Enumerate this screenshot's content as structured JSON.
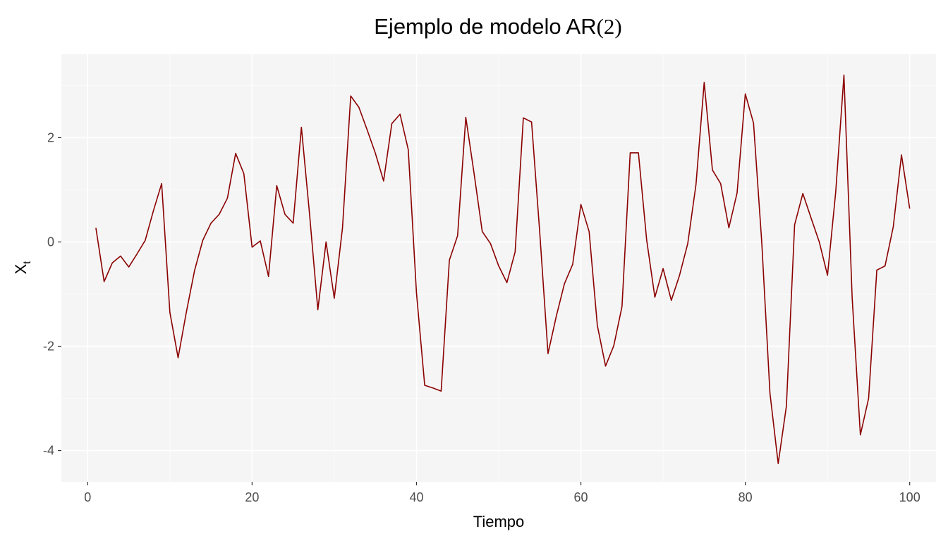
{
  "chart_data": {
    "type": "line",
    "title": "Ejemplo de modelo AR",
    "title_math": "(2)",
    "xlabel": "Tiempo",
    "ylabel": "X",
    "ylabel_subscript": "t",
    "xlim": [
      -3.2,
      103.2
    ],
    "ylim": [
      -4.6,
      3.6
    ],
    "x_ticks": [
      0,
      20,
      40,
      60,
      80,
      100
    ],
    "x_tick_labels": [
      "0",
      "20",
      "40",
      "60",
      "80",
      "100"
    ],
    "y_ticks": [
      -4,
      -2,
      0,
      2
    ],
    "y_tick_labels": [
      "-4",
      "-2",
      "0",
      "2"
    ],
    "grid": true,
    "legend": "none",
    "series": [
      {
        "color": "#8b0000",
        "x": [
          1,
          2,
          3,
          4,
          5,
          6,
          7,
          8,
          9,
          10,
          11,
          12,
          13,
          14,
          15,
          16,
          17,
          18,
          19,
          20,
          21,
          22,
          23,
          24,
          25,
          26,
          27,
          28,
          29,
          30,
          31,
          32,
          33,
          34,
          35,
          36,
          37,
          38,
          39,
          40,
          41,
          42,
          43,
          44,
          45,
          46,
          47,
          48,
          49,
          50,
          51,
          52,
          53,
          54,
          55,
          56,
          57,
          58,
          59,
          60,
          61,
          62,
          63,
          64,
          65,
          66,
          67,
          68,
          69,
          70,
          71,
          72,
          73,
          74,
          75,
          76,
          77,
          78,
          79,
          80,
          81,
          82,
          83,
          84,
          85,
          86,
          87,
          88,
          89,
          90,
          91,
          92,
          93,
          94,
          95,
          96,
          97,
          98,
          99,
          100
        ],
        "y": [
          0.27,
          -0.76,
          -0.4,
          -0.27,
          -0.48,
          -0.23,
          0.03,
          0.6,
          1.12,
          -1.35,
          -2.22,
          -1.35,
          -0.55,
          0.03,
          0.36,
          0.53,
          0.84,
          1.7,
          1.31,
          -0.1,
          0.02,
          -0.66,
          1.08,
          0.53,
          0.36,
          2.2,
          0.52,
          -1.3,
          0.0,
          -1.08,
          0.27,
          2.8,
          2.58,
          2.15,
          1.7,
          1.17,
          2.27,
          2.45,
          1.77,
          -0.98,
          -2.75,
          -2.8,
          -2.86,
          -0.35,
          0.12,
          2.39,
          1.32,
          0.2,
          -0.03,
          -0.46,
          -0.78,
          -0.19,
          2.38,
          2.3,
          0.17,
          -2.14,
          -1.43,
          -0.8,
          -0.43,
          0.72,
          0.2,
          -1.6,
          -2.38,
          -1.99,
          -1.24,
          1.71,
          1.71,
          0.04,
          -1.06,
          -0.51,
          -1.12,
          -0.64,
          -0.03,
          1.1,
          3.06,
          1.38,
          1.12,
          0.27,
          0.94,
          2.84,
          2.28,
          0.0,
          -2.9,
          -4.25,
          -3.15,
          0.33,
          0.93,
          0.46,
          0.0,
          -0.64,
          0.96,
          3.2,
          -1.07,
          -3.7,
          -3.0,
          -0.54,
          -0.46,
          0.29,
          1.67,
          0.64
        ]
      }
    ],
    "colors": {
      "panel_background": "#f5f5f5",
      "grid_major": "#ffffff",
      "grid_minor": "#fbfbfb",
      "tick_label": "#4d4d4d",
      "tick_mark": "#333333"
    }
  }
}
